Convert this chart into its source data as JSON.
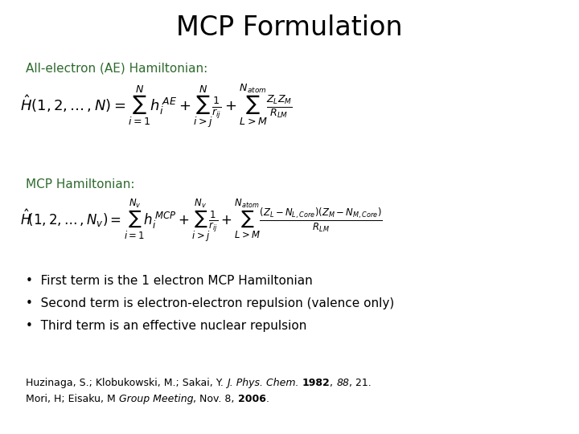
{
  "title": "MCP Formulation",
  "title_fontsize": 24,
  "bg_color": "#ffffff",
  "text_color": "#000000",
  "label_color": "#2e6b2e",
  "ae_label": "All-electron (AE) Hamiltonian:",
  "mcp_label": "MCP Hamiltonian:",
  "bullet1": "First term is the 1 electron MCP Hamiltonian",
  "bullet2": "Second term is electron-electron repulsion (valence only)",
  "bullet3": "Third term is an effective nuclear repulsion",
  "label_fontsize": 11,
  "bullet_fontsize": 11,
  "ref_fontsize": 9,
  "ae_eq_fontsize": 13,
  "mcp_eq_fontsize": 12
}
